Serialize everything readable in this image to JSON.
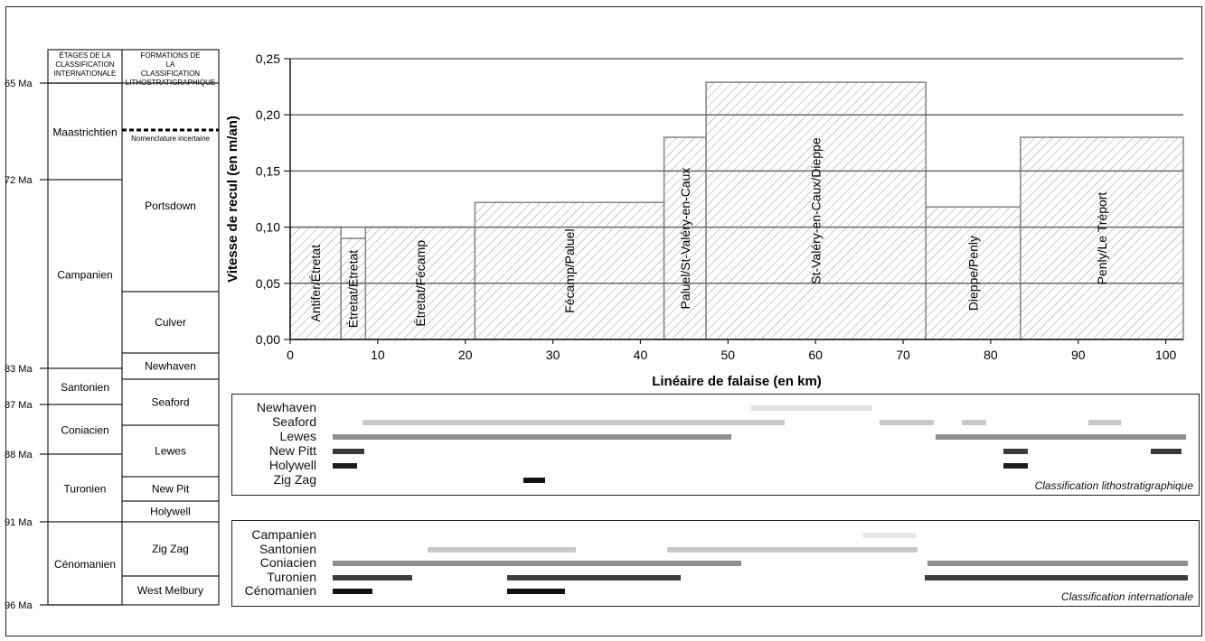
{
  "strat_table": {
    "headers": {
      "etages": "ÉTAGES DE LA CLASSIFICATION INTERNATIONALE",
      "formations": "FORMATIONS DE LA CLASSIFICATION LITHOSTRATIGRAPHIQUE"
    },
    "ages": [
      {
        "label": "65 Ma",
        "ma": 65
      },
      {
        "label": "72 Ma",
        "ma": 72
      },
      {
        "label": "83 Ma",
        "ma": 83
      },
      {
        "label": "87 Ma",
        "ma": 87
      },
      {
        "label": "88 Ma",
        "ma": 88
      },
      {
        "label": "91 Ma",
        "ma": 91
      },
      {
        "label": "96 Ma",
        "ma": 96
      }
    ],
    "stages": [
      "Maastrichtien",
      "Campanien",
      "Santonien",
      "Coniacien",
      "Turonien",
      "Cénomanien"
    ],
    "formations": [
      "Nomenclature incertaine",
      "Portsdown",
      "Culver",
      "Newhaven",
      "Seaford",
      "Lewes",
      "New Pit",
      "Holywell",
      "Zig Zag",
      "West Melbury"
    ]
  },
  "chart_data": {
    "type": "bar",
    "xlabel": "Linéaire de falaise  (en km)",
    "ylabel": "Vitesse de recul (en m/an)",
    "xlim": [
      0,
      102
    ],
    "ylim": [
      0,
      0.25
    ],
    "xticks": [
      "0",
      "10",
      "20",
      "30",
      "40",
      "50",
      "60",
      "70",
      "80",
      "90",
      "100"
    ],
    "yticks": [
      "0,00",
      "0,05",
      "0,10",
      "0,15",
      "0,20",
      "0,25"
    ],
    "grid": true,
    "segments": [
      {
        "label": "Antifer/Étretat",
        "x0": 0,
        "x1": 5.8,
        "value": 0.1
      },
      {
        "label": "Étretat/Étretat",
        "x0": 5.8,
        "x1": 8.6,
        "value": 0.09
      },
      {
        "label": "Étretat/Fécamp",
        "x0": 8.6,
        "x1": 21.1,
        "value": 0.1
      },
      {
        "label": "Fécamp/Paluel",
        "x0": 21.1,
        "x1": 42.7,
        "value": 0.122
      },
      {
        "label": "Paluel/St-Valéry-en-Caux",
        "x0": 42.7,
        "x1": 47.5,
        "value": 0.18
      },
      {
        "label": "St-Valéry-en-Caux/Dieppe",
        "x0": 47.5,
        "x1": 72.6,
        "value": 0.229
      },
      {
        "label": "Dieppe/Penly",
        "x0": 72.6,
        "x1": 83.4,
        "value": 0.118
      },
      {
        "label": "Penly/Le Tréport",
        "x0": 83.4,
        "x1": 102,
        "value": 0.18
      }
    ]
  },
  "litho_panel": {
    "title": "Classification lithostratigraphique",
    "rows": [
      {
        "label": "Newhaven",
        "color": "#e2e2e2",
        "ranges": [
          [
            52.5,
            66.4
          ]
        ]
      },
      {
        "label": "Seaford",
        "color": "#c9c9c9",
        "ranges": [
          [
            8.2,
            56.4
          ],
          [
            67.2,
            73.4
          ],
          [
            76.6,
            79.4
          ],
          [
            91.1,
            94.8
          ]
        ]
      },
      {
        "label": "Lewes",
        "color": "#8e8e8e",
        "ranges": [
          [
            4.7,
            50.3
          ],
          [
            73.6,
            102.2
          ]
        ]
      },
      {
        "label": "New Pitt",
        "color": "#3a3a3a",
        "ranges": [
          [
            4.7,
            8.4
          ],
          [
            81.4,
            84.1
          ],
          [
            98.2,
            101.7
          ]
        ]
      },
      {
        "label": "Holywell",
        "color": "#1e1e1e",
        "ranges": [
          [
            4.7,
            7.5
          ],
          [
            81.4,
            84.1
          ]
        ]
      },
      {
        "label": "Zig Zag",
        "color": "#111111",
        "ranges": [
          [
            26.5,
            29
          ]
        ]
      }
    ]
  },
  "inter_panel": {
    "title": "Classification internationale",
    "rows": [
      {
        "label": "Campanien",
        "color": "#e6e6e6",
        "ranges": [
          [
            65.4,
            71.3
          ]
        ]
      },
      {
        "label": "Santonien",
        "color": "#c9c9c9",
        "ranges": [
          [
            15.6,
            32.5
          ],
          [
            42.9,
            71.5
          ]
        ]
      },
      {
        "label": "Coniacien",
        "color": "#8e8e8e",
        "ranges": [
          [
            4.7,
            51.4
          ],
          [
            72.7,
            102.4
          ]
        ]
      },
      {
        "label": "Turonien",
        "color": "#3e3e3e",
        "ranges": [
          [
            4.7,
            13.8
          ],
          [
            24.7,
            44.5
          ],
          [
            72.4,
            102.4
          ]
        ]
      },
      {
        "label": "Cénomanien",
        "color": "#111111",
        "ranges": [
          [
            4.7,
            9.3
          ],
          [
            24.7,
            31.3
          ]
        ]
      }
    ]
  }
}
